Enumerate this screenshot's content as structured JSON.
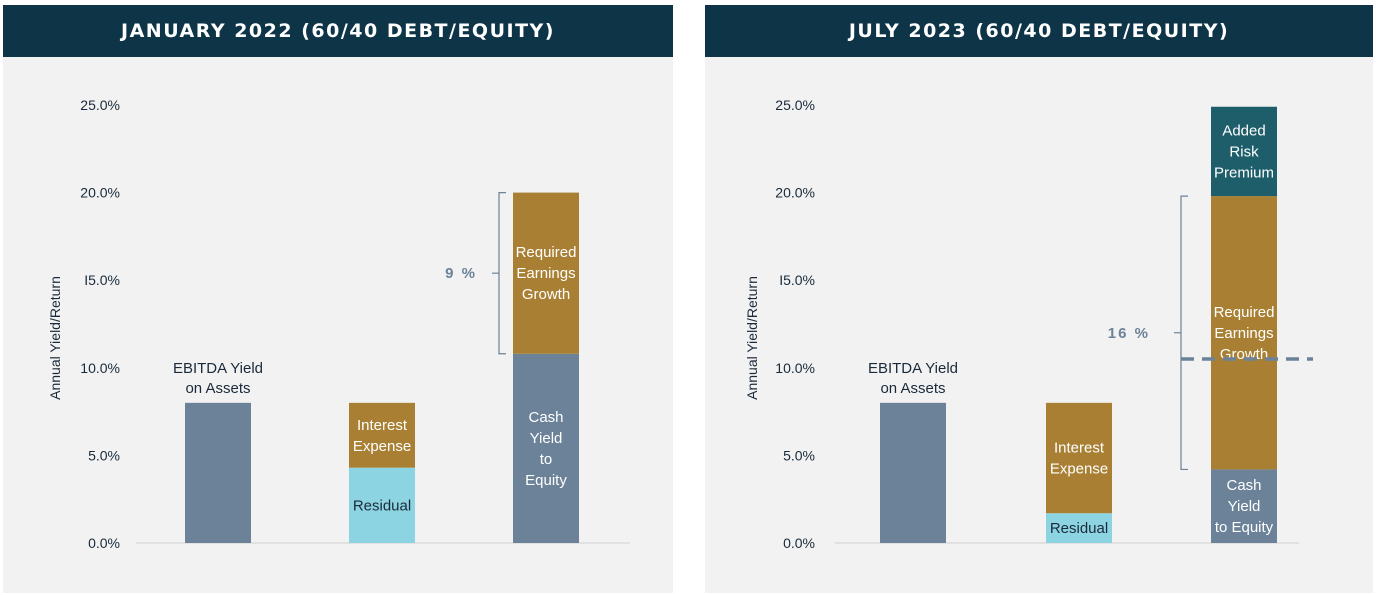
{
  "colors": {
    "header_bg": "#0d3447",
    "panel_bg": "#f2f2f2",
    "slate": "#6b8299",
    "gold": "#a98033",
    "aqua": "#8dd4e2",
    "teal": "#1e5e6a",
    "axis_text": "#1a2a3a",
    "annotation": "#6b8299"
  },
  "chart_data": [
    {
      "type": "bar",
      "stacked": true,
      "title": "JANUARY 2022 (60/40 DEBT/EQUITY)",
      "ylabel": "Annual Yield/Return",
      "ylim": [
        0,
        25
      ],
      "yticks": [
        0,
        5,
        10,
        15,
        20,
        25
      ],
      "yticklabels": [
        "0.0%",
        "5.0%",
        "10.0%",
        "I5.0%",
        "20.0%",
        "25.0%"
      ],
      "grid": false,
      "bars": [
        {
          "label": "EBITDA Yield on Assets",
          "label_lines": [
            "EBITDA Yield",
            "on Assets"
          ],
          "segments": [
            {
              "value": 8.0,
              "color": "#6b8299",
              "label_lines": []
            }
          ]
        },
        {
          "label": "",
          "label_lines": [],
          "segments": [
            {
              "value": 4.3,
              "color": "#8dd4e2",
              "label_lines": [
                "Residual"
              ]
            },
            {
              "value": 3.7,
              "color": "#a98033",
              "label_lines": [
                "Interest",
                "Expense"
              ]
            }
          ]
        },
        {
          "label": "",
          "label_lines": [],
          "segments": [
            {
              "value": 10.8,
              "color": "#6b8299",
              "label_lines": [
                "Cash",
                "Yield",
                "to",
                "Equity"
              ]
            },
            {
              "value": 9.2,
              "color": "#a98033",
              "label_lines": [
                "Required",
                "Earnings",
                "Growth"
              ]
            }
          ]
        }
      ],
      "annotation": {
        "text": "9 %",
        "bracket_from": 10.8,
        "bracket_to": 20.0
      },
      "dashed_line": null
    },
    {
      "type": "bar",
      "stacked": true,
      "title": "JULY 2023 (60/40 DEBT/EQUITY)",
      "ylabel": "Annual Yield/Return",
      "ylim": [
        0,
        25
      ],
      "yticks": [
        0,
        5,
        10,
        15,
        20,
        25
      ],
      "yticklabels": [
        "0.0%",
        "5.0%",
        "10.0%",
        "I5.0%",
        "20.0%",
        "25.0%"
      ],
      "grid": false,
      "bars": [
        {
          "label": "EBITDA Yield on Assets",
          "label_lines": [
            "EBITDA Yield",
            "on Assets"
          ],
          "segments": [
            {
              "value": 8.0,
              "color": "#6b8299",
              "label_lines": []
            }
          ]
        },
        {
          "label": "",
          "label_lines": [],
          "segments": [
            {
              "value": 1.7,
              "color": "#8dd4e2",
              "label_lines": [
                "Residual"
              ]
            },
            {
              "value": 6.3,
              "color": "#a98033",
              "label_lines": [
                "Interest",
                "Expense"
              ]
            }
          ]
        },
        {
          "label": "",
          "label_lines": [],
          "segments": [
            {
              "value": 4.2,
              "color": "#6b8299",
              "label_lines": [
                "Cash",
                "Yield",
                "to Equity"
              ]
            },
            {
              "value": 15.6,
              "color": "#a98033",
              "label_lines": [
                "Required",
                "Earnings",
                "Growth"
              ]
            },
            {
              "value": 5.1,
              "color": "#1e5e6a",
              "label_lines": [
                "Added",
                "Risk",
                "Premium"
              ]
            }
          ]
        }
      ],
      "annotation": {
        "text": "16 %",
        "bracket_from": 4.2,
        "bracket_to": 19.8
      },
      "dashed_line": {
        "value": 10.5
      }
    }
  ]
}
